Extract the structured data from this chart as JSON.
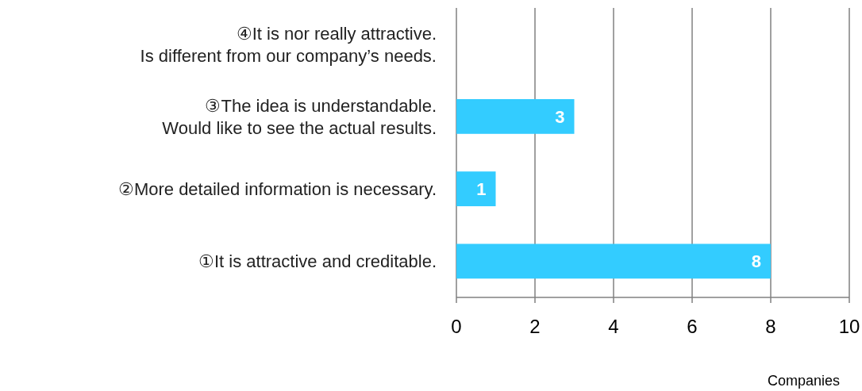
{
  "chart_data": {
    "type": "bar",
    "orientation": "horizontal",
    "categories": [
      "④It is nor really attractive.\nIs different from our company’s needs.",
      "③The idea is understandable.\nWould like to see the actual results.",
      "②More detailed information is necessary.",
      "①It is attractive and creditable."
    ],
    "values": [
      0,
      3,
      1,
      8
    ],
    "value_labels": [
      null,
      "3",
      "1",
      "8"
    ],
    "color": "#33ccff",
    "xlim": [
      0,
      10
    ],
    "xticks": [
      0,
      2,
      4,
      6,
      8,
      10
    ],
    "grid": "x",
    "xlabel": "Companies"
  }
}
